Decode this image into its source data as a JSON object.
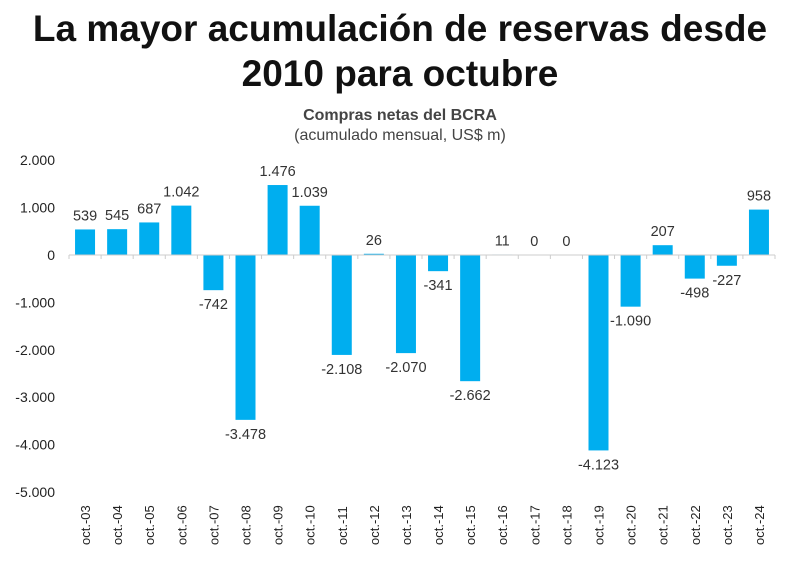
{
  "chart_data": {
    "type": "bar",
    "title": "La mayor acumulación de reservas desde 2010 para octubre",
    "subtitle": "Compras netas del BCRA",
    "subtitle2": "(acumulado mensual, US$ m)",
    "xlabel": "",
    "ylabel": "",
    "ylim": [
      -5000,
      2000
    ],
    "yticks": [
      2000,
      1000,
      0,
      -1000,
      -2000,
      -3000,
      -4000,
      -5000
    ],
    "ytick_labels": [
      "2.000",
      "1.000",
      "0",
      "-1.000",
      "-2.000",
      "-3.000",
      "-4.000",
      "-5.000"
    ],
    "grid": false,
    "bar_color": "#00AEEF",
    "categories": [
      "oct.-03",
      "oct.-04",
      "oct.-05",
      "oct.-06",
      "oct.-07",
      "oct.-08",
      "oct.-09",
      "oct.-10",
      "oct.-11",
      "oct.-12",
      "oct.-13",
      "oct.-14",
      "oct.-15",
      "oct.-16",
      "oct.-17",
      "oct.-18",
      "oct.-19",
      "oct.-20",
      "oct.-21",
      "oct.-22",
      "oct.-23",
      "oct.-24"
    ],
    "values": [
      539,
      545,
      687,
      1042,
      -742,
      -3478,
      1476,
      1039,
      -2108,
      26,
      -2070,
      -341,
      -2662,
      11,
      0,
      0,
      -4123,
      -1090,
      207,
      -498,
      -227,
      958
    ],
    "data_labels": [
      "539",
      "545",
      "687",
      "1.042",
      "-742",
      "-3.478",
      "1.476",
      "1.039",
      "-2.108",
      "26",
      "-2.070",
      "-341",
      "-2.662",
      "11",
      "0",
      "0",
      "-4.123",
      "-1.090",
      "207",
      "-498",
      "-227",
      "958"
    ]
  }
}
